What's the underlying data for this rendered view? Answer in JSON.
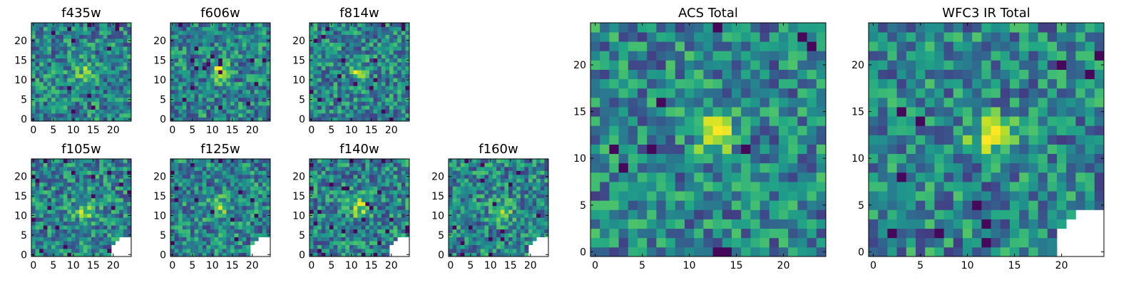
{
  "chart_data": [
    {
      "type": "heatmap",
      "title": "f435w",
      "colormap": "viridis",
      "xlim": [
        0,
        25
      ],
      "ylim": [
        0,
        25
      ],
      "xticks": [
        0,
        5,
        10,
        15,
        20
      ],
      "yticks": [
        0,
        5,
        10,
        15,
        20
      ],
      "grid": false,
      "legend": "none",
      "feature": {
        "x": 13,
        "y": 12,
        "sigma": 2.0,
        "amp": 0.25
      },
      "seed": 11,
      "masked_corner": false
    },
    {
      "type": "heatmap",
      "title": "f606w",
      "colormap": "viridis",
      "xlim": [
        0,
        25
      ],
      "ylim": [
        0,
        25
      ],
      "xticks": [
        0,
        5,
        10,
        15,
        20
      ],
      "yticks": [
        0,
        5,
        10,
        15,
        20
      ],
      "grid": false,
      "legend": "none",
      "feature": {
        "x": 12,
        "y": 12,
        "sigma": 1.5,
        "amp": 0.5
      },
      "seed": 23,
      "masked_corner": false
    },
    {
      "type": "heatmap",
      "title": "f814w",
      "colormap": "viridis",
      "xlim": [
        0,
        25
      ],
      "ylim": [
        0,
        25
      ],
      "xticks": [
        0,
        5,
        10,
        15,
        20
      ],
      "yticks": [
        0,
        5,
        10,
        15,
        20
      ],
      "grid": false,
      "legend": "none",
      "feature": {
        "x": 12,
        "y": 12,
        "sigma": 1.5,
        "amp": 0.35
      },
      "seed": 37,
      "masked_corner": false
    },
    {
      "type": "heatmap",
      "title": "f105w",
      "colormap": "viridis",
      "xlim": [
        0,
        25
      ],
      "ylim": [
        0,
        25
      ],
      "xticks": [
        0,
        5,
        10,
        15,
        20
      ],
      "yticks": [
        0,
        5,
        10,
        15,
        20
      ],
      "grid": false,
      "legend": "none",
      "feature": {
        "x": 13,
        "y": 11,
        "sigma": 1.8,
        "amp": 0.3
      },
      "seed": 41,
      "masked_corner": true
    },
    {
      "type": "heatmap",
      "title": "f125w",
      "colormap": "viridis",
      "xlim": [
        0,
        25
      ],
      "ylim": [
        0,
        25
      ],
      "xticks": [
        0,
        5,
        10,
        15,
        20
      ],
      "yticks": [
        0,
        5,
        10,
        15,
        20
      ],
      "grid": false,
      "legend": "none",
      "feature": {
        "x": 12,
        "y": 12,
        "sigma": 1.8,
        "amp": 0.3
      },
      "seed": 53,
      "masked_corner": true
    },
    {
      "type": "heatmap",
      "title": "f140w",
      "colormap": "viridis",
      "xlim": [
        0,
        25
      ],
      "ylim": [
        0,
        25
      ],
      "xticks": [
        0,
        5,
        10,
        15,
        20
      ],
      "yticks": [
        0,
        5,
        10,
        15,
        20
      ],
      "grid": false,
      "legend": "none",
      "feature": {
        "x": 12,
        "y": 12,
        "sigma": 1.8,
        "amp": 0.35
      },
      "seed": 67,
      "masked_corner": true
    },
    {
      "type": "heatmap",
      "title": "f160w",
      "colormap": "viridis",
      "xlim": [
        0,
        25
      ],
      "ylim": [
        0,
        25
      ],
      "xticks": [
        0,
        5,
        10,
        15,
        20
      ],
      "yticks": [
        0,
        5,
        10,
        15,
        20
      ],
      "grid": false,
      "legend": "none",
      "feature": {
        "x": 13,
        "y": 11,
        "sigma": 1.8,
        "amp": 0.4
      },
      "seed": 79,
      "masked_corner": true
    },
    {
      "type": "heatmap",
      "title": "ACS Total",
      "colormap": "viridis",
      "xlim": [
        0,
        25
      ],
      "ylim": [
        0,
        25
      ],
      "xticks": [
        0,
        5,
        10,
        15,
        20
      ],
      "yticks": [
        0,
        5,
        10,
        15,
        20
      ],
      "grid": false,
      "legend": "none",
      "feature": {
        "x": 12.5,
        "y": 12.5,
        "sigma": 1.4,
        "amp": 0.55
      },
      "seed": 97,
      "masked_corner": false
    },
    {
      "type": "heatmap",
      "title": "WFC3 IR Total",
      "colormap": "viridis",
      "xlim": [
        0,
        25
      ],
      "ylim": [
        0,
        25
      ],
      "xticks": [
        0,
        5,
        10,
        15,
        20
      ],
      "yticks": [
        0,
        5,
        10,
        15,
        20
      ],
      "grid": false,
      "legend": "none",
      "feature": {
        "x": 12.5,
        "y": 12.5,
        "sigma": 1.6,
        "amp": 0.45
      },
      "seed": 113,
      "masked_corner": true
    }
  ]
}
